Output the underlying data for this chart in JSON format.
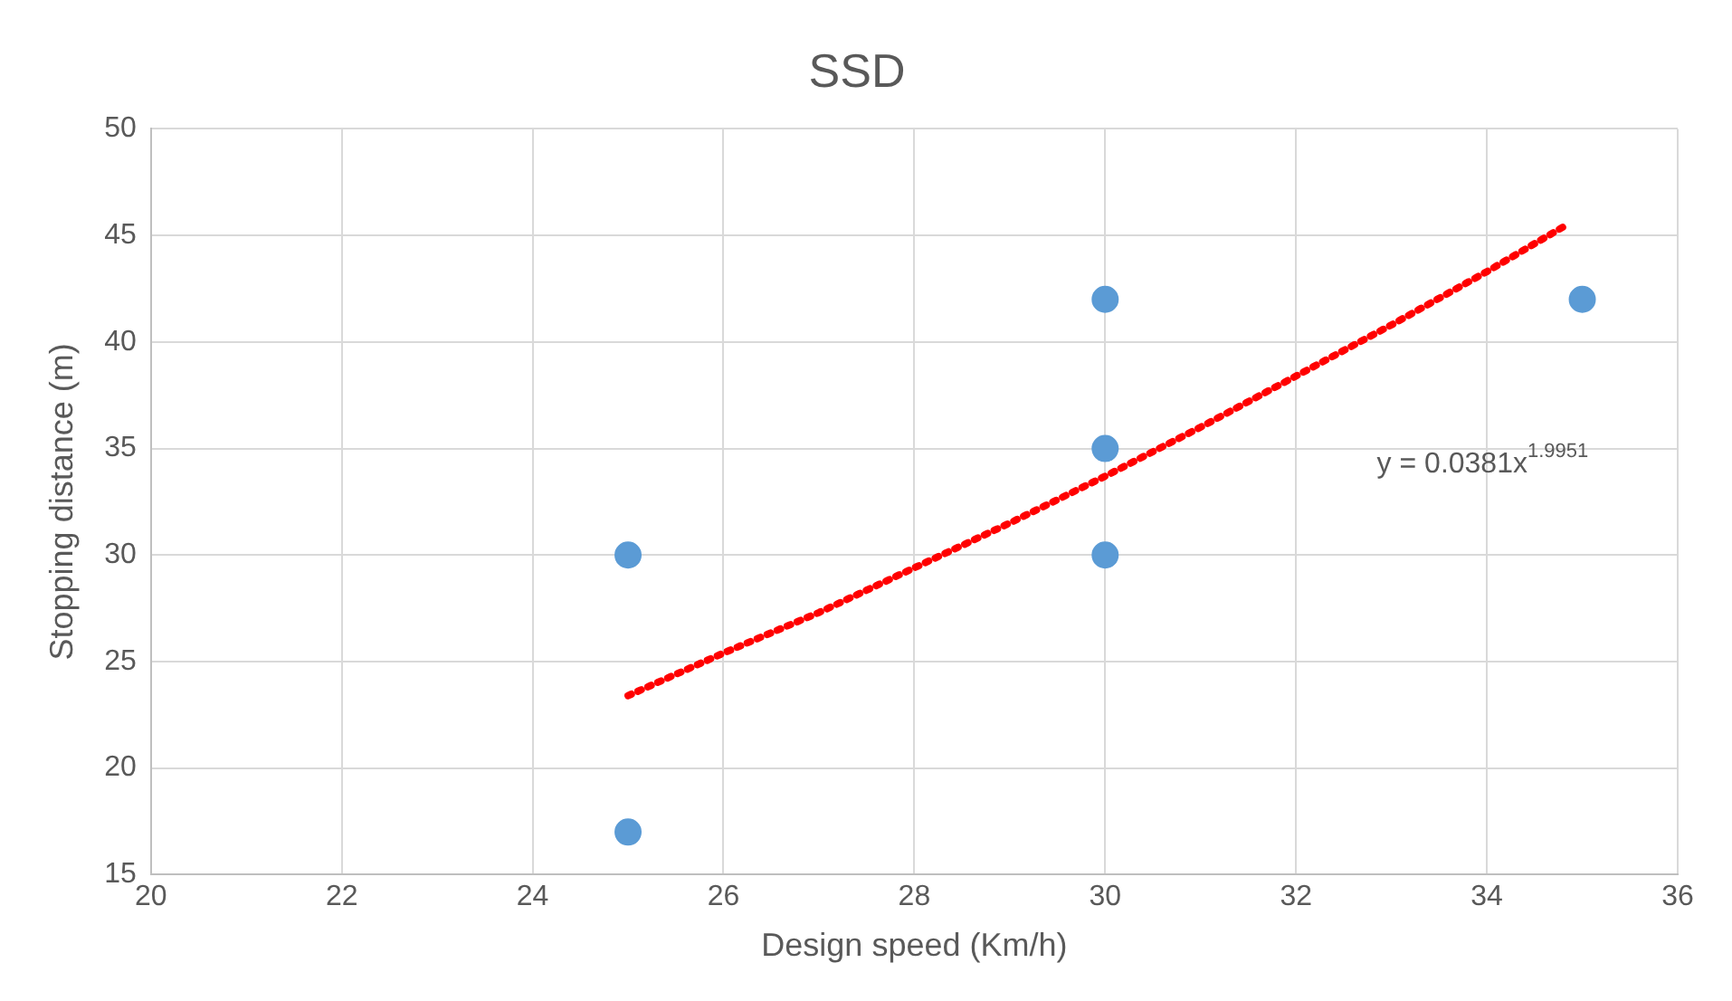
{
  "chart_data": {
    "type": "scatter",
    "title": "SSD",
    "xlabel": "Design speed (Km/h)",
    "ylabel": "Stopping distance (m)",
    "series": [
      {
        "color": "#5b9bd5",
        "x": [
          25,
          25,
          30,
          30,
          30,
          35
        ],
        "values": [
          30,
          17,
          42,
          35,
          30,
          42
        ]
      },
      {
        "type": "line",
        "color": "#ff0000",
        "line_style": "dotted",
        "marker": "none",
        "x": [
          25,
          26,
          27,
          28,
          29,
          30,
          31,
          32,
          33,
          34,
          34.8
        ],
        "values": [
          23.4,
          25.4,
          27.3,
          29.4,
          31.5,
          33.7,
          36.0,
          38.4,
          40.8,
          43.3,
          45.4
        ]
      }
    ],
    "annotations": [
      "y = 0.0381x$^{1.9951}$"
    ],
    "xlim": [
      20,
      36
    ],
    "xticks": [
      20,
      22,
      24,
      26,
      28,
      30,
      32,
      34,
      36
    ],
    "ylim": [
      15,
      50
    ],
    "yticks": [
      15,
      20,
      25,
      30,
      35,
      40,
      45,
      50
    ],
    "grid": true,
    "legend": false,
    "marker": "circle"
  }
}
